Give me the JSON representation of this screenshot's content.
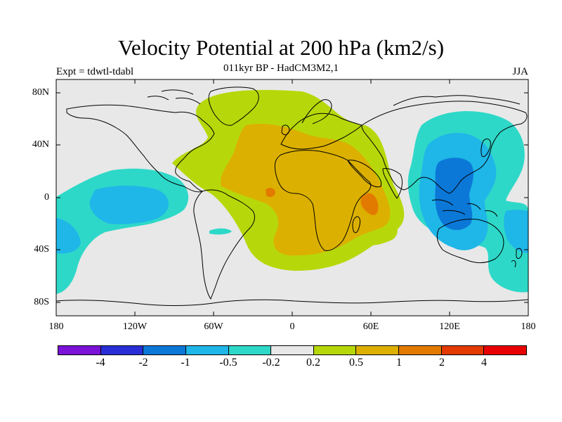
{
  "header": {
    "title": "Velocity Potential at 200 hPa (km2/s)",
    "subtitle": "011kyr BP - HadCM3M2,1",
    "experiment": "Expt = tdwtl-tdabl",
    "season": "JJA"
  },
  "axes": {
    "y_ticks": [
      "80N",
      "40N",
      "0",
      "40S",
      "80S"
    ],
    "x_ticks": [
      "180",
      "120W",
      "60W",
      "0",
      "60E",
      "120E",
      "180"
    ]
  },
  "colorbar": {
    "colors": [
      "#7a12d8",
      "#2a2ed6",
      "#0b78d8",
      "#1fb6e8",
      "#2ed8c8",
      "#e8e8e8",
      "#b6d80a",
      "#dcb000",
      "#e37a00",
      "#e23a00",
      "#e80000"
    ],
    "labels": [
      "-4",
      "-2",
      "-1",
      "-0.5",
      "-0.2",
      "0.2",
      "0.5",
      "1",
      "2",
      "4"
    ]
  },
  "map_fills": {
    "background": "#e8e8e8",
    "positive_weak": "#b6d80a",
    "positive_mid": "#dcb000",
    "positive_strong": "#e37a00",
    "negative_weak": "#2ed8c8",
    "negative_mid": "#1fb6e8",
    "negative_strong": "#0b78d8"
  }
}
